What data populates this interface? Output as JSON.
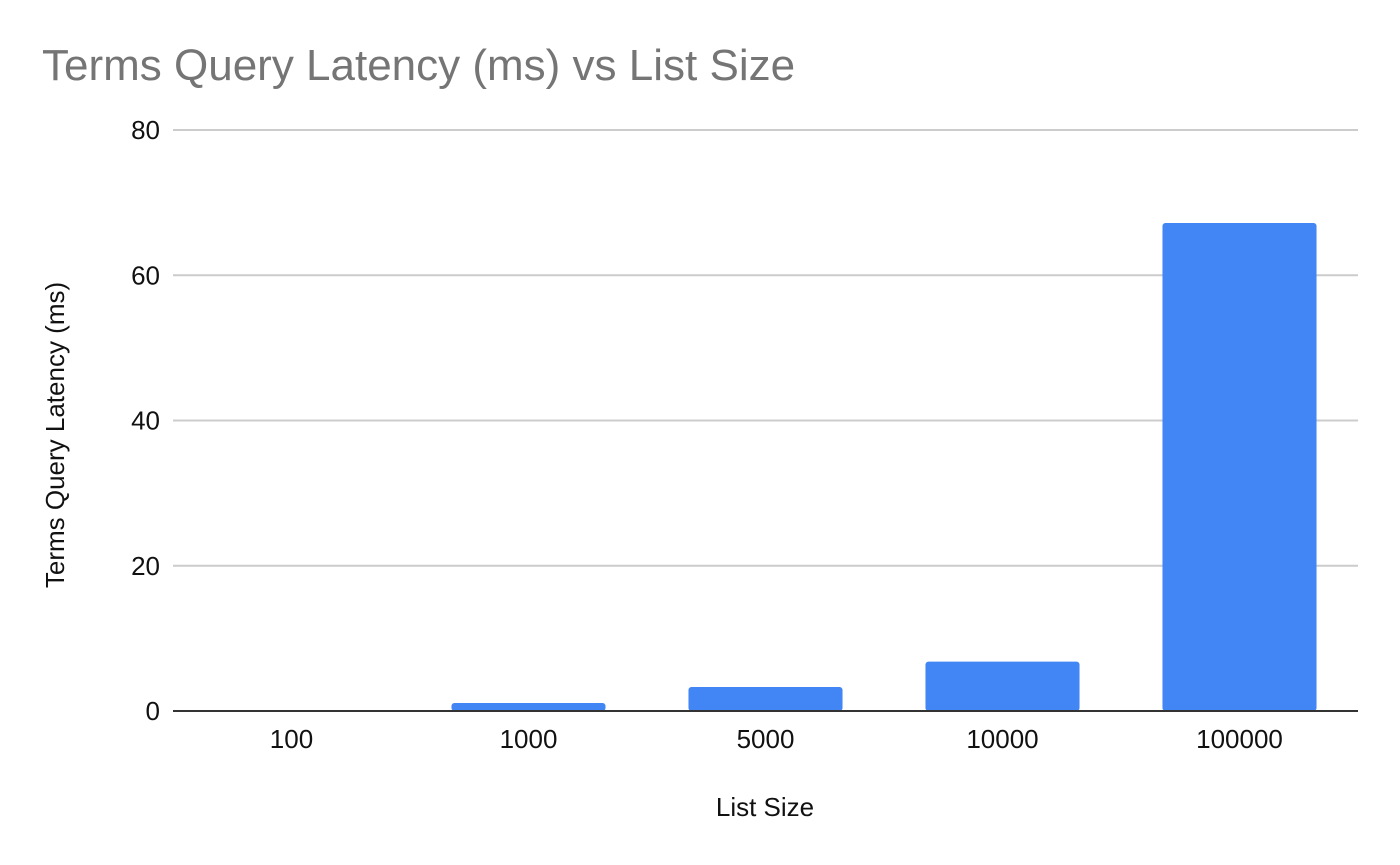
{
  "chart_data": {
    "type": "bar",
    "title": "Terms Query Latency (ms) vs List Size",
    "xlabel": "List Size",
    "ylabel": "Terms Query Latency (ms)",
    "categories": [
      "100",
      "1000",
      "5000",
      "10000",
      "100000"
    ],
    "series": [
      {
        "values": [
          0.1,
          1.1,
          3.3,
          6.8,
          67.2
        ],
        "color": "#4285f4"
      }
    ],
    "ylim": [
      0,
      80
    ],
    "yticks": [
      0,
      20,
      40,
      60,
      80
    ],
    "grid": true,
    "legend": "none"
  }
}
